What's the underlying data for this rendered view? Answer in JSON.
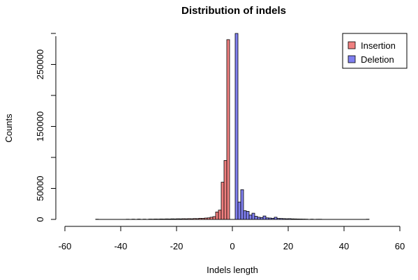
{
  "chart_data": {
    "type": "bar",
    "title": "Distribution of indels",
    "xlabel": "Indels length",
    "ylabel": "Counts",
    "xlim": [
      -60,
      60
    ],
    "ylim": [
      0,
      300000
    ],
    "x_ticks": [
      -60,
      -40,
      -20,
      0,
      20,
      40,
      60
    ],
    "y_ticks": [
      0,
      50000,
      150000,
      250000
    ],
    "legend_position": "top-right",
    "grid": false,
    "series": [
      {
        "name": "Insertion",
        "color": "#f08080",
        "bins": [
          {
            "x0": -49,
            "x1": -48,
            "value": 300
          },
          {
            "x0": -38,
            "x1": -37,
            "value": 300
          },
          {
            "x0": -36,
            "x1": -35,
            "value": 400
          },
          {
            "x0": -34,
            "x1": -33,
            "value": 500
          },
          {
            "x0": -32,
            "x1": -31,
            "value": 400
          },
          {
            "x0": -30,
            "x1": -29,
            "value": 500
          },
          {
            "x0": -29,
            "x1": -28,
            "value": 400
          },
          {
            "x0": -28,
            "x1": -27,
            "value": 600
          },
          {
            "x0": -27,
            "x1": -26,
            "value": 500
          },
          {
            "x0": -26,
            "x1": -25,
            "value": 700
          },
          {
            "x0": -25,
            "x1": -24,
            "value": 600
          },
          {
            "x0": -24,
            "x1": -23,
            "value": 800
          },
          {
            "x0": -23,
            "x1": -22,
            "value": 700
          },
          {
            "x0": -22,
            "x1": -21,
            "value": 900
          },
          {
            "x0": -21,
            "x1": -20,
            "value": 800
          },
          {
            "x0": -20,
            "x1": -19,
            "value": 1000
          },
          {
            "x0": -19,
            "x1": -18,
            "value": 900
          },
          {
            "x0": -18,
            "x1": -17,
            "value": 1100
          },
          {
            "x0": -17,
            "x1": -16,
            "value": 1000
          },
          {
            "x0": -16,
            "x1": -15,
            "value": 1200
          },
          {
            "x0": -15,
            "x1": -14,
            "value": 1100
          },
          {
            "x0": -14,
            "x1": -13,
            "value": 1400
          },
          {
            "x0": -13,
            "x1": -12,
            "value": 1300
          },
          {
            "x0": -12,
            "x1": -11,
            "value": 1800
          },
          {
            "x0": -11,
            "x1": -10,
            "value": 1700
          },
          {
            "x0": -10,
            "x1": -9,
            "value": 2200
          },
          {
            "x0": -9,
            "x1": -8,
            "value": 2500
          },
          {
            "x0": -8,
            "x1": -7,
            "value": 3500
          },
          {
            "x0": -7,
            "x1": -6,
            "value": 4500
          },
          {
            "x0": -6,
            "x1": -5,
            "value": 12000
          },
          {
            "x0": -5,
            "x1": -4,
            "value": 15000
          },
          {
            "x0": -4,
            "x1": -3,
            "value": 60000
          },
          {
            "x0": -3,
            "x1": -2,
            "value": 95000
          },
          {
            "x0": -2,
            "x1": -1,
            "value": 290000
          },
          {
            "x0": -1,
            "x1": 0,
            "value": 0
          }
        ]
      },
      {
        "name": "Deletion",
        "color": "#8080f0",
        "bins": [
          {
            "x0": 0,
            "x1": 1,
            "value": 0
          },
          {
            "x0": 1,
            "x1": 2,
            "value": 300000
          },
          {
            "x0": 2,
            "x1": 3,
            "value": 28000
          },
          {
            "x0": 3,
            "x1": 4,
            "value": 48000
          },
          {
            "x0": 4,
            "x1": 5,
            "value": 14000
          },
          {
            "x0": 5,
            "x1": 6,
            "value": 13000
          },
          {
            "x0": 6,
            "x1": 7,
            "value": 7000
          },
          {
            "x0": 7,
            "x1": 8,
            "value": 10000
          },
          {
            "x0": 8,
            "x1": 9,
            "value": 5000
          },
          {
            "x0": 9,
            "x1": 10,
            "value": 3500
          },
          {
            "x0": 10,
            "x1": 11,
            "value": 3000
          },
          {
            "x0": 11,
            "x1": 12,
            "value": 5500
          },
          {
            "x0": 12,
            "x1": 13,
            "value": 2500
          },
          {
            "x0": 13,
            "x1": 14,
            "value": 2200
          },
          {
            "x0": 14,
            "x1": 15,
            "value": 1800
          },
          {
            "x0": 15,
            "x1": 16,
            "value": 3500
          },
          {
            "x0": 16,
            "x1": 17,
            "value": 1600
          },
          {
            "x0": 17,
            "x1": 18,
            "value": 1500
          },
          {
            "x0": 18,
            "x1": 19,
            "value": 1300
          },
          {
            "x0": 19,
            "x1": 20,
            "value": 1100
          },
          {
            "x0": 20,
            "x1": 21,
            "value": 1200
          },
          {
            "x0": 21,
            "x1": 22,
            "value": 900
          },
          {
            "x0": 22,
            "x1": 23,
            "value": 800
          },
          {
            "x0": 23,
            "x1": 24,
            "value": 700
          },
          {
            "x0": 24,
            "x1": 25,
            "value": 600
          },
          {
            "x0": 25,
            "x1": 26,
            "value": 500
          },
          {
            "x0": 26,
            "x1": 27,
            "value": 400
          },
          {
            "x0": 28,
            "x1": 29,
            "value": 400
          },
          {
            "x0": 30,
            "x1": 31,
            "value": 300
          },
          {
            "x0": 31,
            "x1": 32,
            "value": 300
          },
          {
            "x0": 48,
            "x1": 49,
            "value": 300
          }
        ]
      }
    ],
    "baseline_range": [
      -49,
      49
    ]
  }
}
